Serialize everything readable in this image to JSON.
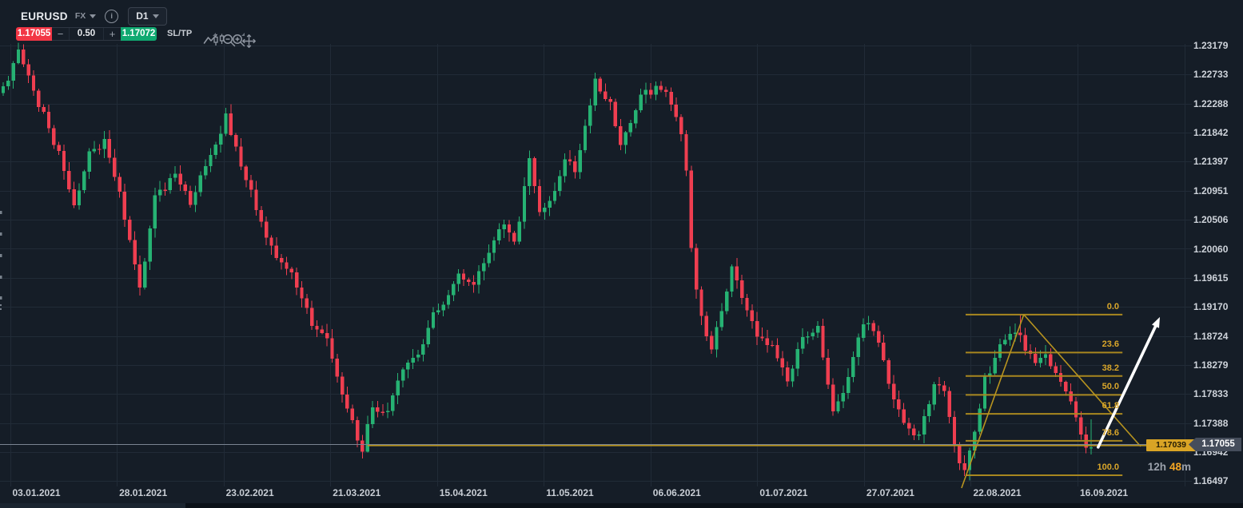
{
  "header": {
    "symbol": "EURUSD",
    "market_label": "FX",
    "timeframe": "D1",
    "info_glyph": "i",
    "sell_price": "1.17055",
    "buy_price": "1.17072",
    "amount": "0.50",
    "minus_label": "−",
    "plus_label": "+",
    "sltp_label": "SL/TP",
    "colors": {
      "sell_red": "#f23645",
      "buy_green": "#10a971"
    }
  },
  "price_axis": {
    "labels": [
      "1.23179",
      "1.22733",
      "1.22288",
      "1.21842",
      "1.21397",
      "1.20951",
      "1.20506",
      "1.20060",
      "1.19615",
      "1.19170",
      "1.18724",
      "1.18279",
      "1.17833",
      "1.17388",
      "1.16942",
      "1.16497"
    ]
  },
  "time_axis": {
    "labels": [
      "03.01.2021",
      "28.01.2021",
      "23.02.2021",
      "21.03.2021",
      "15.04.2021",
      "11.05.2021",
      "06.06.2021",
      "01.07.2021",
      "27.07.2021",
      "22.08.2021",
      "16.09.2021"
    ]
  },
  "chart_data": {
    "type": "candlestick",
    "symbol": "EURUSD",
    "timeframe": "D1",
    "date_range": [
      "03.01.2021",
      "16.09.2021"
    ],
    "y_axis_range": [
      1.16497,
      1.23179
    ],
    "bars": 216,
    "anchors": [
      [
        0,
        1.2245
      ],
      [
        2,
        1.2262
      ],
      [
        4,
        1.2316
      ],
      [
        6,
        1.2268
      ],
      [
        9,
        1.221
      ],
      [
        12,
        1.215
      ],
      [
        15,
        1.2072
      ],
      [
        18,
        1.215
      ],
      [
        21,
        1.2172
      ],
      [
        24,
        1.2088
      ],
      [
        28,
        1.1948
      ],
      [
        31,
        1.2082
      ],
      [
        35,
        1.2122
      ],
      [
        38,
        1.2072
      ],
      [
        41,
        1.2132
      ],
      [
        44,
        1.218
      ],
      [
        45,
        1.2212
      ],
      [
        47,
        1.2158
      ],
      [
        51,
        1.2072
      ],
      [
        55,
        1.1988
      ],
      [
        58,
        1.197
      ],
      [
        62,
        1.1892
      ],
      [
        65,
        1.187
      ],
      [
        68,
        1.1782
      ],
      [
        71,
        1.1716
      ],
      [
        72,
        1.17
      ],
      [
        74,
        1.1762
      ],
      [
        77,
        1.175
      ],
      [
        80,
        1.1822
      ],
      [
        83,
        1.1842
      ],
      [
        86,
        1.1902
      ],
      [
        88,
        1.1922
      ],
      [
        91,
        1.1962
      ],
      [
        94,
        1.1946
      ],
      [
        97,
        1.2002
      ],
      [
        100,
        1.2048
      ],
      [
        102,
        1.2012
      ],
      [
        105,
        1.2138
      ],
      [
        107,
        1.2062
      ],
      [
        110,
        1.2092
      ],
      [
        112,
        1.2148
      ],
      [
        114,
        1.2125
      ],
      [
        118,
        1.2262
      ],
      [
        121,
        1.2232
      ],
      [
        123,
        1.2162
      ],
      [
        125,
        1.2198
      ],
      [
        127,
        1.2238
      ],
      [
        130,
        1.2252
      ],
      [
        132,
        1.2244
      ],
      [
        135,
        1.218
      ],
      [
        136,
        1.2128
      ],
      [
        137,
        1.2002
      ],
      [
        139,
        1.1898
      ],
      [
        141,
        1.185
      ],
      [
        143,
        1.1912
      ],
      [
        145,
        1.1976
      ],
      [
        147,
        1.1934
      ],
      [
        150,
        1.1874
      ],
      [
        153,
        1.1852
      ],
      [
        156,
        1.18
      ],
      [
        159,
        1.1874
      ],
      [
        162,
        1.1886
      ],
      [
        165,
        1.1752
      ],
      [
        168,
        1.1804
      ],
      [
        171,
        1.1892
      ],
      [
        173,
        1.1882
      ],
      [
        176,
        1.1802
      ],
      [
        179,
        1.1732
      ],
      [
        182,
        1.1716
      ],
      [
        185,
        1.1798
      ],
      [
        187,
        1.179
      ],
      [
        189,
        1.17
      ],
      [
        191,
        1.1662
      ],
      [
        193,
        1.173
      ],
      [
        195,
        1.1804
      ],
      [
        197,
        1.1838
      ],
      [
        199,
        1.1868
      ],
      [
        201,
        1.1882
      ],
      [
        203,
        1.1852
      ],
      [
        205,
        1.1836
      ],
      [
        207,
        1.1842
      ],
      [
        209,
        1.1812
      ],
      [
        211,
        1.179
      ],
      [
        213,
        1.174
      ],
      [
        215,
        1.1702
      ]
    ],
    "overrides": {
      "4": {
        "high": 1.232
      },
      "45": {
        "high": 1.2228
      },
      "72": {
        "low": 1.16935
      },
      "118": {
        "high": 1.227
      },
      "191": {
        "low": 1.16505
      },
      "201": {
        "high": 1.19045
      },
      "215": {
        "close": 1.1701,
        "low": 1.169,
        "high": 1.1744
      }
    },
    "colors": {
      "up": "#26b273",
      "down": "#ef3e50",
      "background": "#151d27",
      "grid": "#212b37"
    },
    "fibonacci": {
      "from_bar": 190.2,
      "to_bar": 221.2,
      "line_color": "#a8871f",
      "label_color": "#d9a62a",
      "levels": [
        {
          "label": "0.0",
          "price": 1.19048
        },
        {
          "label": "23.6",
          "price": 1.18466
        },
        {
          "label": "38.2",
          "price": 1.18106
        },
        {
          "label": "50.0",
          "price": 1.17816
        },
        {
          "label": "61.8",
          "price": 1.17525
        },
        {
          "label": "78.6",
          "price": 1.17111
        },
        {
          "label": "100.0",
          "price": 1.16583
        }
      ]
    },
    "trend_lines": [
      {
        "from": [
          189.4,
          1.16386
        ],
        "to": [
          201.7,
          1.19048
        ]
      },
      {
        "from": [
          201.7,
          1.19048
        ],
        "to": [
          224.8,
          1.17025
        ]
      }
    ],
    "price_ray": {
      "price": 1.17039,
      "from_bar": 72,
      "label": "1.17039",
      "color": "#b8941f"
    },
    "current_price": {
      "value": "1.17055",
      "price": 1.17055,
      "line_color": "#7b8492",
      "badge_bg": "#454d5b"
    },
    "arrow": {
      "from": [
        216.4,
        1.17013
      ],
      "to": [
        228.6,
        1.19011
      ],
      "color": "#ffffff"
    }
  },
  "overlays": {
    "countdown": {
      "hours": "12h",
      "minutes": "48",
      "suffix": "m",
      "minute_color": "#f5a623"
    }
  }
}
